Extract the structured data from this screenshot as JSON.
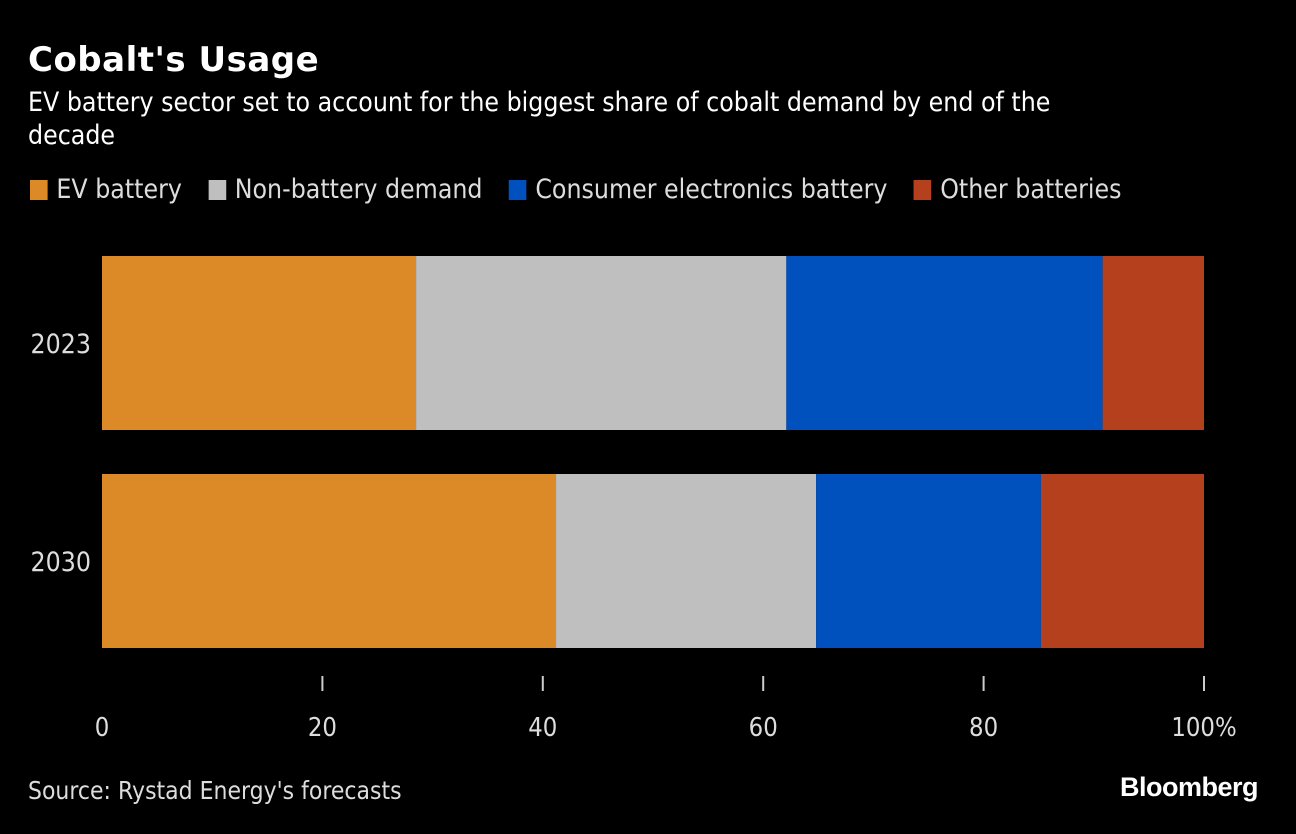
{
  "header": {
    "title": "Cobalt's Usage",
    "subtitle": "EV battery sector set to account for the biggest share of cobalt demand by end of the decade"
  },
  "footer": {
    "source": "Source: Rystad Energy's forecasts",
    "brand": "Bloomberg"
  },
  "chart_data": {
    "type": "bar",
    "orientation": "horizontal",
    "stacked": true,
    "title": "Cobalt's Usage",
    "subtitle": "EV battery sector set to account for the biggest share of cobalt demand by end of the decade",
    "xlabel": "",
    "ylabel": "",
    "categories": [
      "2023",
      "2030"
    ],
    "series": [
      {
        "name": "EV battery",
        "color": "#DB8A27",
        "values": [
          28.5,
          41.2
        ]
      },
      {
        "name": "Non-battery demand",
        "color": "#BFBFBF",
        "values": [
          33.6,
          23.6
        ]
      },
      {
        "name": "Consumer electronics battery",
        "color": "#0051BD",
        "values": [
          28.7,
          20.4
        ]
      },
      {
        "name": "Other batteries",
        "color": "#B5401E",
        "values": [
          9.2,
          14.8
        ]
      }
    ],
    "xlim": [
      0,
      100
    ],
    "xticks": [
      0,
      20,
      40,
      60,
      80,
      100
    ],
    "xtick_labels": [
      "0",
      "20",
      "40",
      "60",
      "80",
      "100%"
    ],
    "grid": false,
    "legend_position": "top-left"
  }
}
